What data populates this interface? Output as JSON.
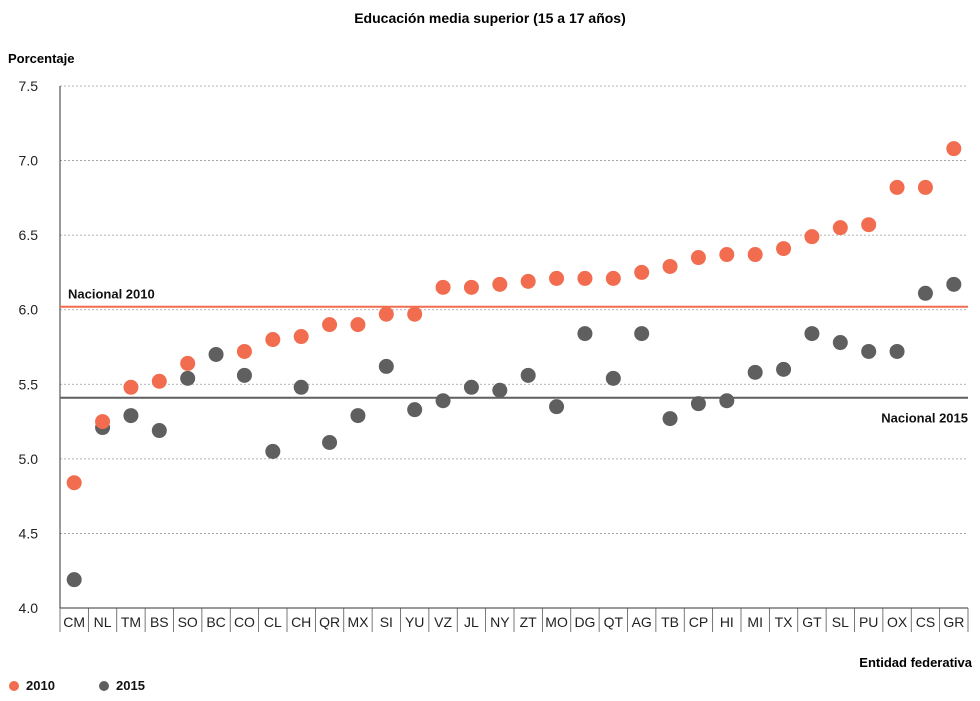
{
  "chart_data": {
    "type": "scatter",
    "title": "Educación media superior (15 a 17 años)",
    "ylabel": "Porcentaje",
    "xlabel": "Entidad federativa",
    "ylim": [
      4.0,
      7.5
    ],
    "yticks": [
      "4.0",
      "4.5",
      "5.0",
      "5.5",
      "6.0",
      "6.5",
      "7.0",
      "7.5"
    ],
    "grid": true,
    "legend_placement": "bottom-left",
    "categories": [
      "CM",
      "NL",
      "TM",
      "BS",
      "SO",
      "BC",
      "CO",
      "CL",
      "CH",
      "QR",
      "MX",
      "SI",
      "YU",
      "VZ",
      "JL",
      "NY",
      "ZT",
      "MO",
      "DG",
      "QT",
      "AG",
      "TB",
      "CP",
      "HI",
      "MI",
      "TX",
      "GT",
      "SL",
      "PU",
      "OX",
      "CS",
      "GR"
    ],
    "series": [
      {
        "name": "2010",
        "color": "#f26c4f",
        "values": [
          4.84,
          5.25,
          5.48,
          5.52,
          5.64,
          null,
          5.72,
          5.8,
          5.82,
          5.9,
          5.9,
          5.97,
          5.97,
          6.15,
          6.15,
          6.17,
          6.19,
          6.21,
          6.21,
          6.21,
          6.25,
          6.29,
          6.35,
          6.37,
          6.37,
          6.41,
          6.49,
          6.55,
          6.57,
          6.82,
          6.82,
          7.08
        ]
      },
      {
        "name": "2015",
        "color": "#5f5f5f",
        "values": [
          4.19,
          5.21,
          5.29,
          5.19,
          5.54,
          5.7,
          5.56,
          5.05,
          5.48,
          5.11,
          5.29,
          5.62,
          5.33,
          5.39,
          5.48,
          5.46,
          5.56,
          5.35,
          5.84,
          5.54,
          5.84,
          5.27,
          5.37,
          5.39,
          5.58,
          5.6,
          5.84,
          5.78,
          5.72,
          5.72,
          6.11,
          6.17
        ]
      }
    ],
    "reference_lines": [
      {
        "label": "Nacional 2010",
        "value": 6.02,
        "color": "#f26c4f"
      },
      {
        "label": "Nacional 2015",
        "value": 5.41,
        "color": "#5f5f5f"
      }
    ]
  }
}
